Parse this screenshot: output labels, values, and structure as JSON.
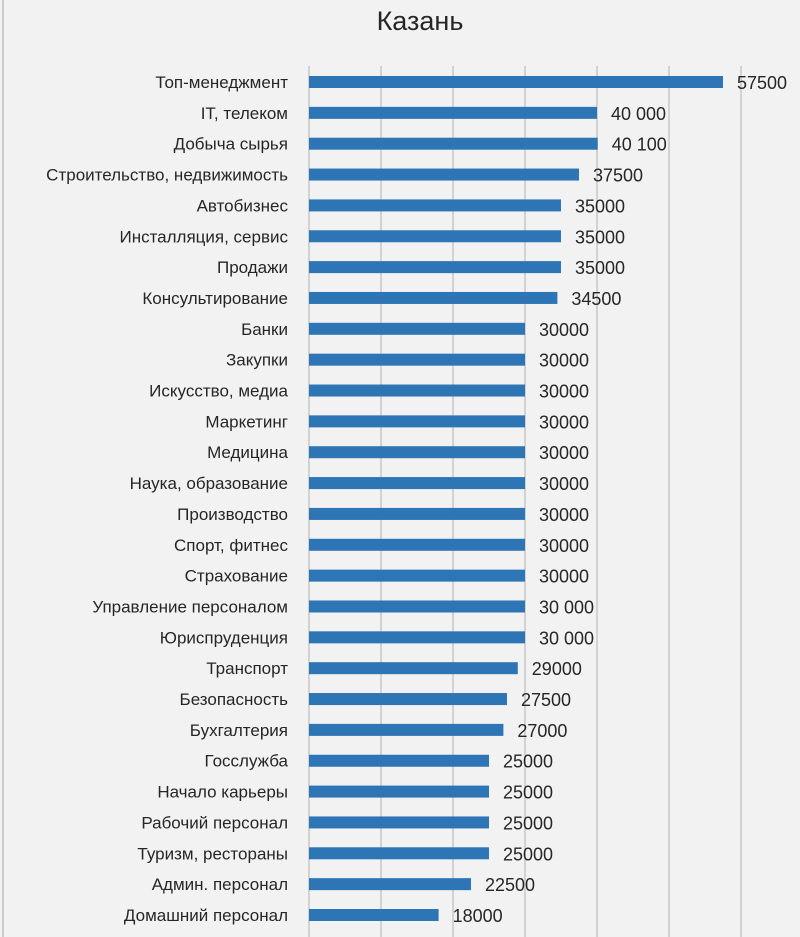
{
  "chart_data": {
    "type": "bar",
    "orientation": "horizontal",
    "title": "Казань",
    "xlabel": "",
    "ylabel": "",
    "xlim": [
      0,
      60000
    ],
    "grid": true,
    "legend": "none",
    "bar_color": "#2e75b6",
    "background_color": "#f2f2f2",
    "categories": [
      "Топ-менеджмент",
      "IT, телеком",
      "Добыча сырья",
      "Строительство, недвижимость",
      "Автобизнес",
      "Инсталляция, сервис",
      "Продажи",
      "Консультирование",
      "Банки",
      "Закупки",
      "Искусство, медиа",
      "Маркетинг",
      "Медицина",
      "Наука, образование",
      "Производство",
      "Спорт, фитнес",
      "Страхование",
      "Управление персоналом",
      "Юриспруденция",
      "Транспорт",
      "Безопасность",
      "Бухгалтерия",
      "Госслужба",
      "Начало карьеры",
      "Рабочий персонал",
      "Туризм, рестораны",
      "Админ. персонал",
      "Домашний персонал"
    ],
    "values": [
      57500,
      40000,
      40100,
      37500,
      35000,
      35000,
      35000,
      34500,
      30000,
      30000,
      30000,
      30000,
      30000,
      30000,
      30000,
      30000,
      30000,
      30000,
      30000,
      29000,
      27500,
      27000,
      25000,
      25000,
      25000,
      25000,
      22500,
      18000
    ],
    "data_labels": [
      "57500",
      "40 000",
      "40 100",
      "37500",
      "35000",
      "35000",
      "35000",
      "34500",
      "30000",
      "30000",
      "30000",
      "30000",
      "30000",
      "30000",
      "30000",
      "30000",
      "30000",
      "30 000",
      "30 000",
      "29000",
      "27500",
      "27000",
      "25000",
      "25000",
      "25000",
      "25000",
      "22500",
      "18000"
    ]
  }
}
